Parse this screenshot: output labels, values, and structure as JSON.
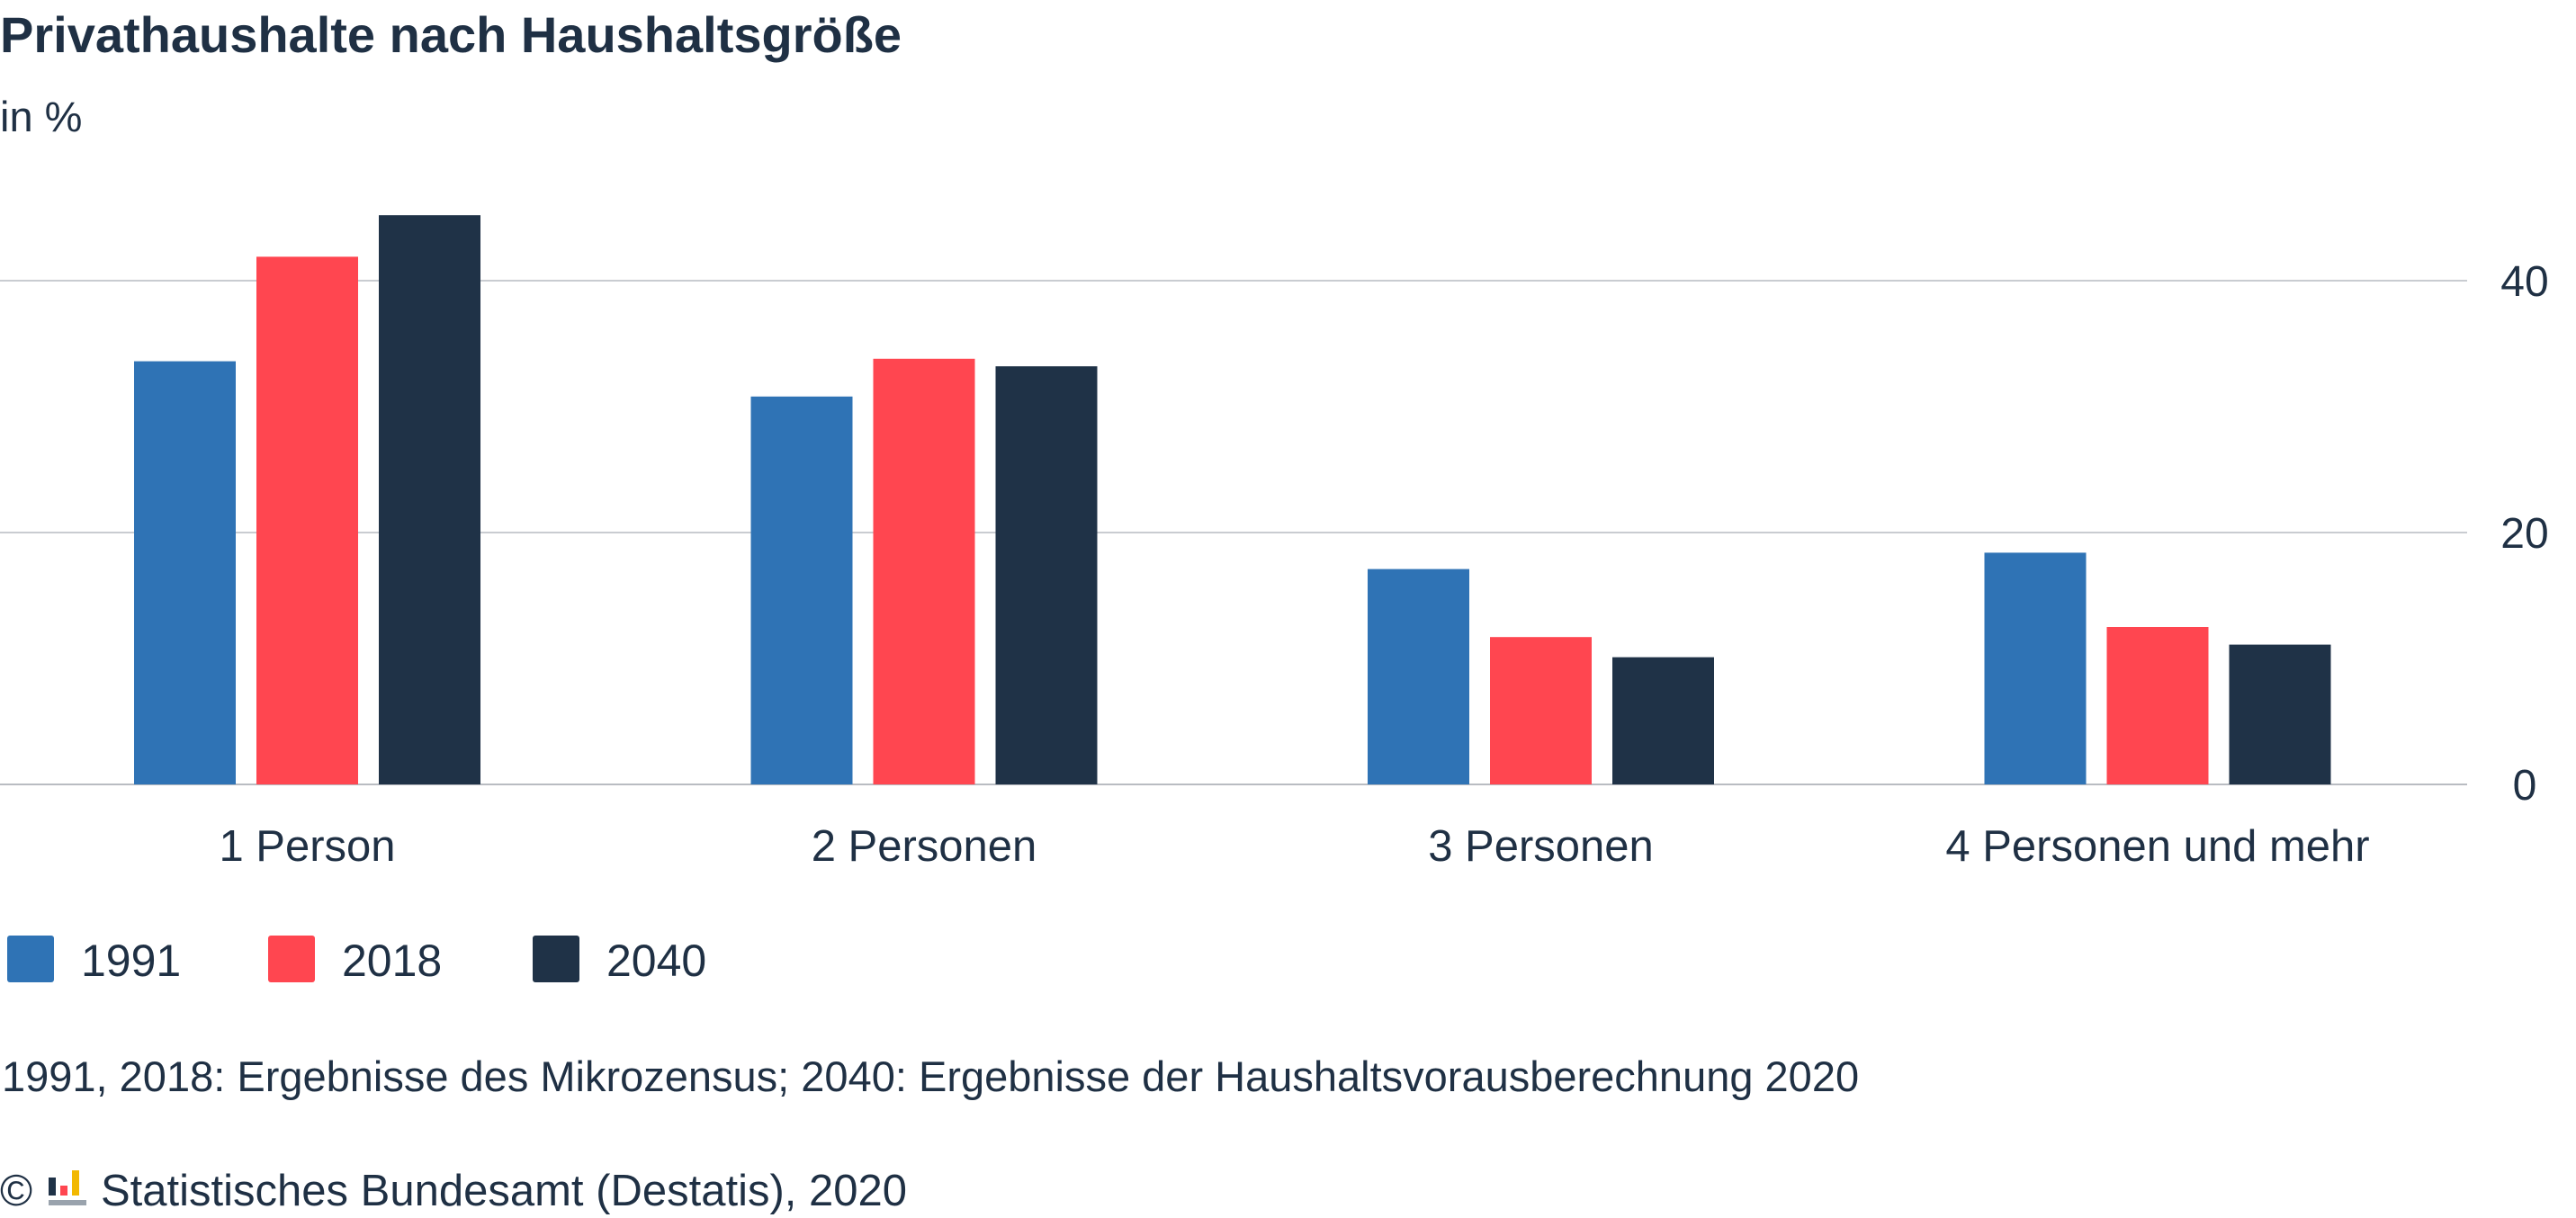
{
  "chart_data": {
    "type": "bar",
    "title": "Privathaushalte nach Haushaltsgröße",
    "subtitle": "in %",
    "categories": [
      "1 Person",
      "2 Personen",
      "3 Personen",
      "4 Personen und mehr"
    ],
    "series": [
      {
        "name": "1991",
        "color": "#2f73b5",
        "values": [
          33.6,
          30.8,
          17.1,
          18.4
        ]
      },
      {
        "name": "2018",
        "color": "#ff4650",
        "values": [
          41.9,
          33.8,
          11.7,
          12.5
        ]
      },
      {
        "name": "2040",
        "color": "#1f3247",
        "values": [
          45.2,
          33.2,
          10.1,
          11.1
        ]
      }
    ],
    "ylim": [
      0,
      50
    ],
    "yticks": [
      0,
      20,
      40
    ],
    "y_axis_side": "right",
    "grid": true,
    "legend_position": "bottom-left",
    "note": "1991, 2018: Ergebnisse des Mikrozensus; 2040: Ergebnisse der Haushaltsvorausberechnung 2020",
    "source": "Statistisches Bundesamt (Destatis), 2020",
    "copyright_symbol": "©"
  }
}
